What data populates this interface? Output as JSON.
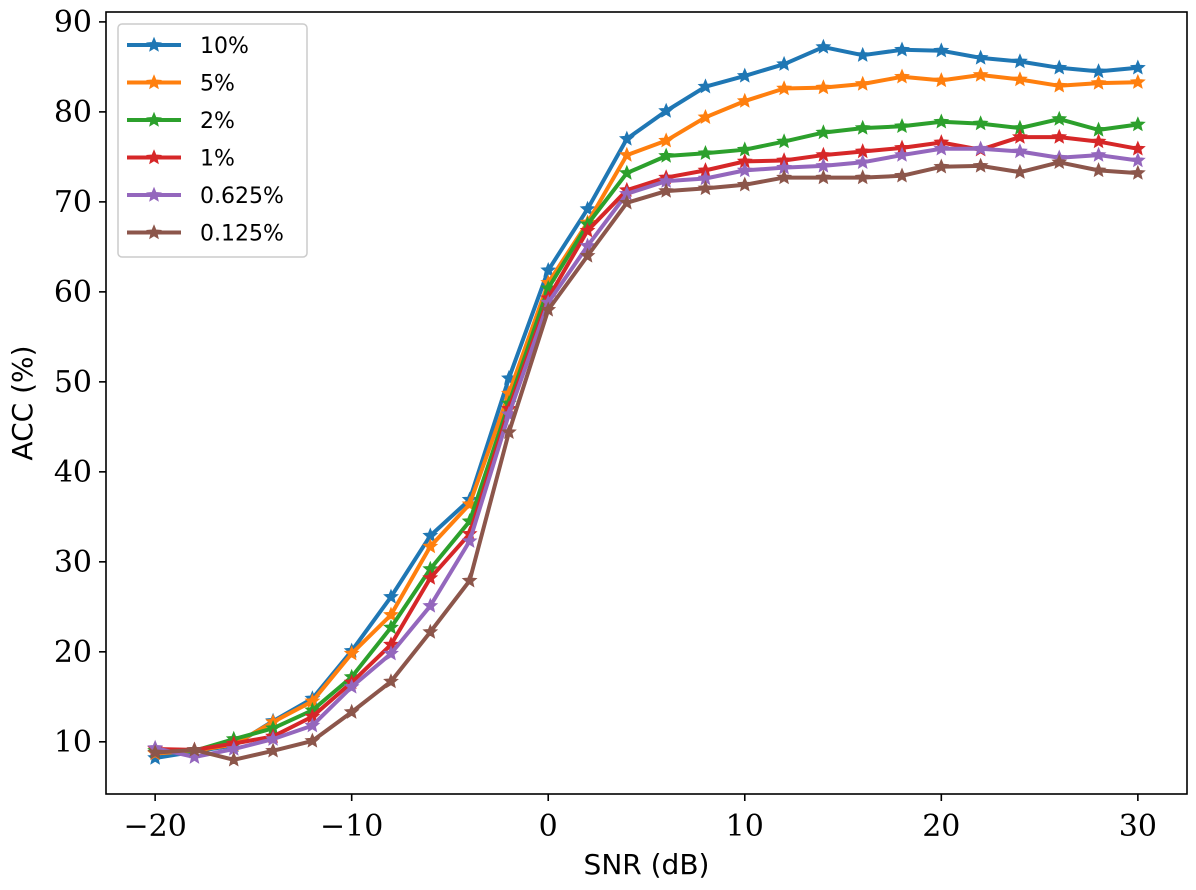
{
  "chart_data": {
    "type": "line",
    "title": "",
    "xlabel": "SNR (dB)",
    "ylabel": "ACC (%)",
    "xlim": [
      -22.5,
      32.5
    ],
    "ylim": [
      4.2,
      91.1
    ],
    "xticks": [
      -20,
      -10,
      0,
      10,
      20,
      30
    ],
    "xtick_labels": [
      "−20",
      "−10",
      "0",
      "10",
      "20",
      "30"
    ],
    "yticks": [
      10,
      20,
      30,
      40,
      50,
      60,
      70,
      80,
      90
    ],
    "ytick_labels": [
      "10",
      "20",
      "30",
      "40",
      "50",
      "60",
      "70",
      "80",
      "90"
    ],
    "grid": false,
    "legend_position": "top-left",
    "marker": "star",
    "x": [
      -20,
      -18,
      -16,
      -14,
      -12,
      -10,
      -8,
      -6,
      -4,
      -2,
      0,
      2,
      4,
      6,
      8,
      10,
      12,
      14,
      16,
      18,
      20,
      22,
      24,
      26,
      28,
      30
    ],
    "series": [
      {
        "name": "10%",
        "color": "#1f77b4",
        "values": [
          8.2,
          8.9,
          9.6,
          12.3,
          14.8,
          20.1,
          26.1,
          32.9,
          36.9,
          50.4,
          62.4,
          69.2,
          77.0,
          80.1,
          82.8,
          84.0,
          85.3,
          87.2,
          86.3,
          86.9,
          86.8,
          86.0,
          85.6,
          84.9,
          84.5,
          84.9
        ]
      },
      {
        "name": "5%",
        "color": "#ff7f0e",
        "values": [
          8.7,
          9.0,
          9.7,
          12.2,
          14.5,
          19.8,
          24.1,
          31.7,
          36.4,
          48.7,
          61.0,
          67.7,
          75.2,
          76.8,
          79.4,
          81.2,
          82.6,
          82.7,
          83.1,
          83.9,
          83.5,
          84.1,
          83.6,
          82.9,
          83.2,
          83.3
        ]
      },
      {
        "name": "2%",
        "color": "#2ca02c",
        "values": [
          9.0,
          9.0,
          10.3,
          11.5,
          13.5,
          17.2,
          22.7,
          29.2,
          34.5,
          47.6,
          60.4,
          67.5,
          73.2,
          75.1,
          75.4,
          75.8,
          76.7,
          77.7,
          78.2,
          78.4,
          78.9,
          78.7,
          78.2,
          79.2,
          78.0,
          78.6
        ]
      },
      {
        "name": "1%",
        "color": "#d62728",
        "values": [
          9.2,
          9.1,
          9.8,
          10.6,
          12.8,
          16.6,
          20.8,
          28.2,
          33.1,
          47.0,
          59.3,
          66.8,
          71.3,
          72.7,
          73.5,
          74.5,
          74.6,
          75.2,
          75.6,
          76.0,
          76.6,
          75.8,
          77.2,
          77.2,
          76.7,
          75.9
        ]
      },
      {
        "name": "0.625%",
        "color": "#9467bd",
        "values": [
          9.3,
          8.3,
          9.2,
          10.3,
          11.8,
          16.1,
          19.8,
          25.1,
          32.3,
          46.4,
          58.8,
          65.1,
          70.9,
          72.3,
          72.6,
          73.5,
          73.8,
          74.0,
          74.4,
          75.2,
          75.9,
          75.9,
          75.6,
          74.9,
          75.2,
          74.6
        ]
      },
      {
        "name": "0.125%",
        "color": "#8c564b",
        "values": [
          8.8,
          9.1,
          8.0,
          9.0,
          10.1,
          13.3,
          16.7,
          22.2,
          27.9,
          44.4,
          58.0,
          64.0,
          69.9,
          71.2,
          71.5,
          71.9,
          72.7,
          72.7,
          72.7,
          72.9,
          73.9,
          74.0,
          73.3,
          74.4,
          73.5,
          73.2
        ]
      }
    ]
  }
}
